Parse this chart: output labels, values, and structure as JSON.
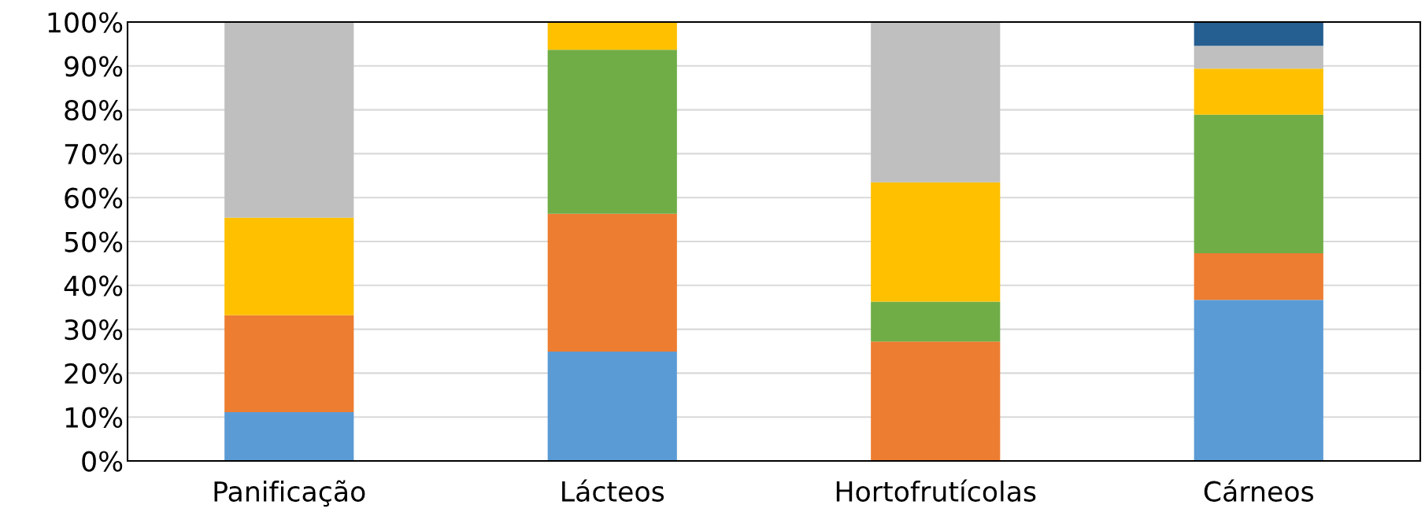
{
  "chart_data": {
    "type": "bar",
    "stacked": true,
    "categories": [
      "Panificação",
      "Lácteos",
      "Hortofrutícolas",
      "Cárneos"
    ],
    "series": [
      {
        "color": "#5b9bd5",
        "values": [
          11.1,
          24.9,
          0,
          36.7
        ]
      },
      {
        "color": "#ed7d31",
        "values": [
          22.1,
          31.4,
          27.2,
          10.6
        ]
      },
      {
        "color": "#70ad47",
        "values": [
          0,
          37.4,
          9.1,
          31.6
        ]
      },
      {
        "color": "#ffc000",
        "values": [
          22.2,
          6.3,
          27.2,
          10.5
        ]
      },
      {
        "color": "#bfbfbf",
        "values": [
          44.6,
          0,
          36.5,
          5.2
        ]
      },
      {
        "color": "#255e91",
        "values": [
          0,
          0,
          0,
          5.4
        ]
      }
    ],
    "ylim": [
      0,
      100
    ],
    "yticks": [
      {
        "value": 0,
        "label": "0%"
      },
      {
        "value": 10,
        "label": "10%"
      },
      {
        "value": 20,
        "label": "20%"
      },
      {
        "value": 30,
        "label": "30%"
      },
      {
        "value": 40,
        "label": "40%"
      },
      {
        "value": 50,
        "label": "50%"
      },
      {
        "value": 60,
        "label": "60%"
      },
      {
        "value": 70,
        "label": "70%"
      },
      {
        "value": 80,
        "label": "80%"
      },
      {
        "value": 90,
        "label": "90%"
      },
      {
        "value": 100,
        "label": "100%"
      }
    ],
    "grid": "y",
    "legend": false
  }
}
